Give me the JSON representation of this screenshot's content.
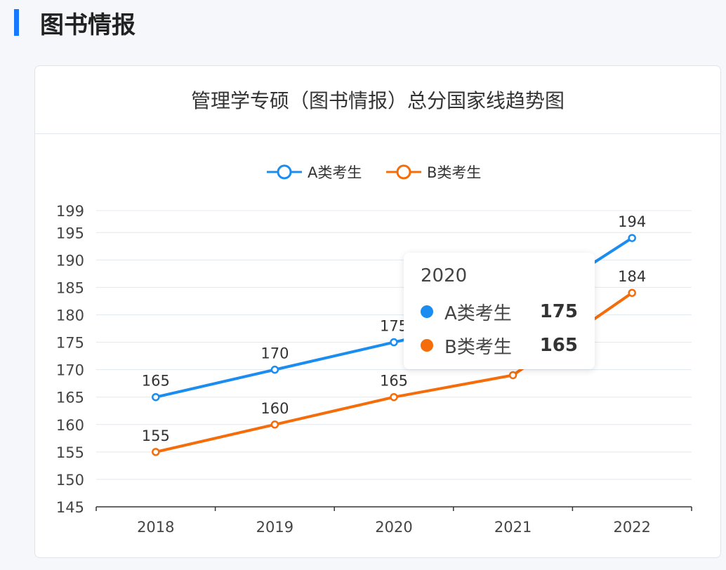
{
  "section_title": "图书情报",
  "chart_data": {
    "type": "line",
    "title": "管理学专硕（图书情报）总分国家线趋势图",
    "categories": [
      "2018",
      "2019",
      "2020",
      "2021",
      "2022"
    ],
    "series": [
      {
        "name": "A类考生",
        "values": [
          165,
          170,
          175,
          180,
          194
        ],
        "color": "#1b8cf0"
      },
      {
        "name": "B类考生",
        "values": [
          155,
          160,
          165,
          169,
          184
        ],
        "color": "#f56c0a"
      }
    ],
    "y_ticks": [
      145,
      150,
      155,
      160,
      165,
      170,
      175,
      180,
      185,
      190,
      195,
      199
    ],
    "ylim": [
      145,
      199
    ],
    "grid": true,
    "legend_placement": "top-center",
    "tooltip": {
      "category": "2020",
      "rows": [
        {
          "name": "A类考生",
          "value": "175"
        },
        {
          "name": "B类考生",
          "value": "165"
        }
      ]
    }
  }
}
